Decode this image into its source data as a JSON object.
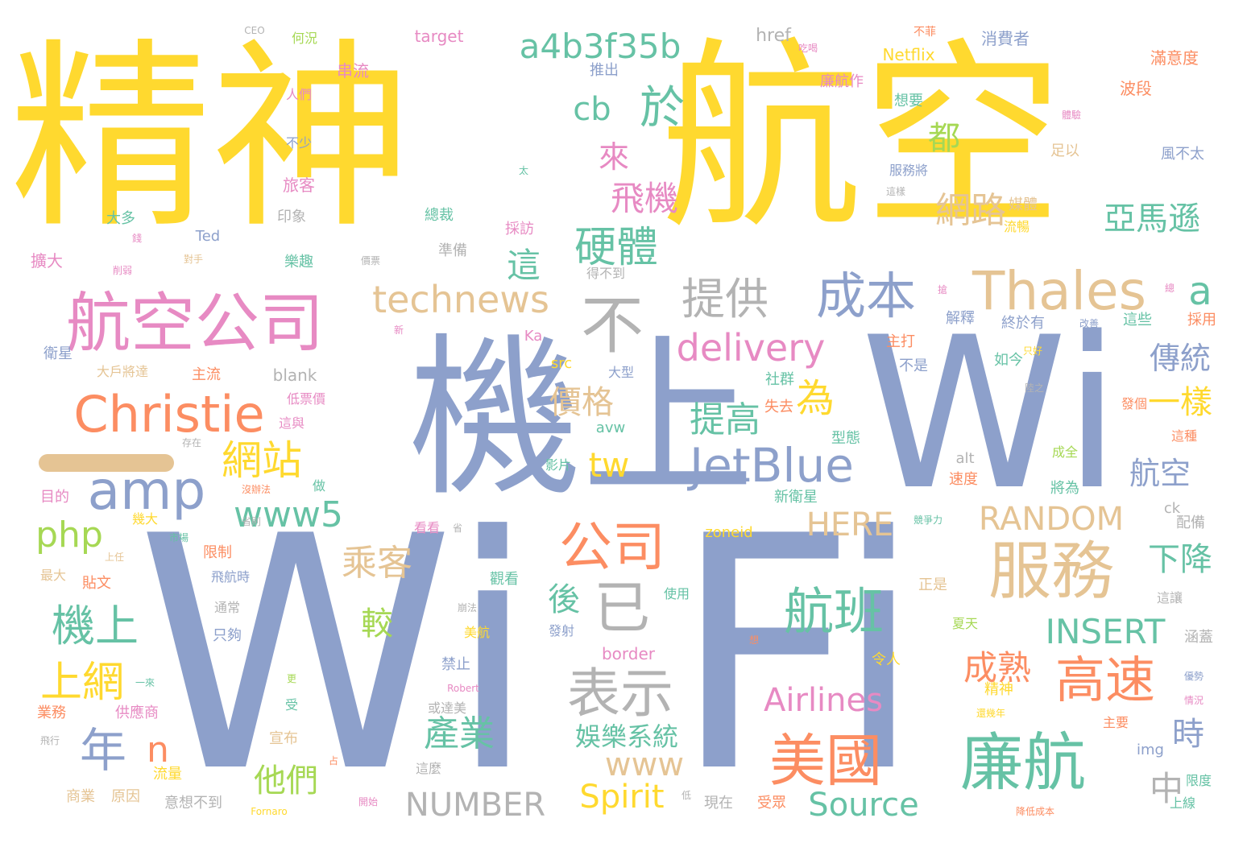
{
  "colors": {
    "yellow": "#ffd92f",
    "blue": "#8da0cb",
    "green": "#66c2a5",
    "orange": "#fc8d62",
    "pink": "#e78ac3",
    "lime": "#a6d854",
    "tan": "#e5c494",
    "gray": "#b3b3b3"
  },
  "words": [
    {
      "text": "精神",
      "c": "yellow"
    },
    {
      "text": "航空",
      "c": "yellow"
    },
    {
      "text": "機上",
      "c": "blue"
    },
    {
      "text": "Wi",
      "c": "blue"
    },
    {
      "text": "Wi",
      "c": "blue"
    },
    {
      "text": "Fi",
      "c": "blue"
    },
    {
      "text": "航空公司",
      "c": "pink"
    },
    {
      "text": "Christie",
      "c": "orange"
    },
    {
      "text": "amp",
      "c": "blue"
    },
    {
      "text": "php",
      "c": "lime"
    },
    {
      "text": "a4b3f35b",
      "c": "green"
    },
    {
      "text": "於",
      "c": "green"
    },
    {
      "text": "cb",
      "c": "green"
    },
    {
      "text": "來",
      "c": "pink"
    },
    {
      "text": "飛機",
      "c": "pink"
    },
    {
      "text": "都",
      "c": "lime"
    },
    {
      "text": "硬體",
      "c": "green"
    },
    {
      "text": "這",
      "c": "green"
    },
    {
      "text": "網路",
      "c": "tan"
    },
    {
      "text": "亞馬遜",
      "c": "green"
    },
    {
      "text": "Thales",
      "c": "tan"
    },
    {
      "text": "a",
      "c": "green"
    },
    {
      "text": "technews",
      "c": "tan"
    },
    {
      "text": "不",
      "c": "gray"
    },
    {
      "text": "提供",
      "c": "gray"
    },
    {
      "text": "成本",
      "c": "blue"
    },
    {
      "text": "delivery",
      "c": "pink"
    },
    {
      "text": "為",
      "c": "yellow"
    },
    {
      "text": "價格",
      "c": "tan"
    },
    {
      "text": "提高",
      "c": "green"
    },
    {
      "text": "JetBlue",
      "c": "blue"
    },
    {
      "text": "tw",
      "c": "yellow"
    },
    {
      "text": "網站",
      "c": "yellow"
    },
    {
      "text": "www5",
      "c": "green"
    },
    {
      "text": "公司",
      "c": "orange"
    },
    {
      "text": "已",
      "c": "gray"
    },
    {
      "text": "服務",
      "c": "tan"
    },
    {
      "text": "RANDOM",
      "c": "tan"
    },
    {
      "text": "HERE",
      "c": "tan"
    },
    {
      "text": "傳統",
      "c": "blue"
    },
    {
      "text": "一樣",
      "c": "yellow"
    },
    {
      "text": "航空",
      "c": "blue"
    },
    {
      "text": "下降",
      "c": "green"
    },
    {
      "text": "乘客",
      "c": "tan"
    },
    {
      "text": "後",
      "c": "green"
    },
    {
      "text": "較",
      "c": "lime"
    },
    {
      "text": "機上",
      "c": "green"
    },
    {
      "text": "上網",
      "c": "yellow"
    },
    {
      "text": "年",
      "c": "blue"
    },
    {
      "text": "n",
      "c": "orange"
    },
    {
      "text": "航班",
      "c": "green"
    },
    {
      "text": "表示",
      "c": "gray"
    },
    {
      "text": "INSERT",
      "c": "green"
    },
    {
      "text": "成熟",
      "c": "orange"
    },
    {
      "text": "高速",
      "c": "orange"
    },
    {
      "text": "Airlines",
      "c": "pink"
    },
    {
      "text": "美國",
      "c": "orange"
    },
    {
      "text": "廉航",
      "c": "green"
    },
    {
      "text": "時",
      "c": "blue"
    },
    {
      "text": "中",
      "c": "gray"
    },
    {
      "text": "產業",
      "c": "green"
    },
    {
      "text": "www",
      "c": "tan"
    },
    {
      "text": "娛樂系統",
      "c": "green"
    },
    {
      "text": "他們",
      "c": "lime"
    },
    {
      "text": "Spirit",
      "c": "yellow"
    },
    {
      "text": "NUMBER",
      "c": "gray"
    },
    {
      "text": "Source",
      "c": "green"
    },
    {
      "text": "CEO",
      "c": "gray"
    },
    {
      "text": "何況",
      "c": "lime"
    },
    {
      "text": "target",
      "c": "pink"
    },
    {
      "text": "href",
      "c": "gray"
    },
    {
      "text": "Netflix",
      "c": "yellow"
    },
    {
      "text": "不菲",
      "c": "orange"
    },
    {
      "text": "吃喝",
      "c": "pink"
    },
    {
      "text": "消費者",
      "c": "blue"
    },
    {
      "text": "滿意度",
      "c": "orange"
    },
    {
      "text": "串流",
      "c": "pink"
    },
    {
      "text": "推出",
      "c": "blue"
    },
    {
      "text": "人們",
      "c": "pink"
    },
    {
      "text": "廉航作",
      "c": "pink"
    },
    {
      "text": "想要",
      "c": "green"
    },
    {
      "text": "波段",
      "c": "orange"
    },
    {
      "text": "體驗",
      "c": "pink"
    },
    {
      "text": "不少",
      "c": "blue"
    },
    {
      "text": "足以",
      "c": "tan"
    },
    {
      "text": "服務將",
      "c": "blue"
    },
    {
      "text": "風不太",
      "c": "blue"
    },
    {
      "text": "太",
      "c": "green"
    },
    {
      "text": "旅客",
      "c": "pink"
    },
    {
      "text": "這樣",
      "c": "gray"
    },
    {
      "text": "媒體",
      "c": "tan"
    },
    {
      "text": "大多",
      "c": "green"
    },
    {
      "text": "錢",
      "c": "pink"
    },
    {
      "text": "印象",
      "c": "gray"
    },
    {
      "text": "總裁",
      "c": "green"
    },
    {
      "text": "採訪",
      "c": "pink"
    },
    {
      "text": "流暢",
      "c": "yellow"
    },
    {
      "text": "Ted",
      "c": "blue"
    },
    {
      "text": "擴大",
      "c": "pink"
    },
    {
      "text": "削弱",
      "c": "pink"
    },
    {
      "text": "對手",
      "c": "tan"
    },
    {
      "text": "樂趣",
      "c": "green"
    },
    {
      "text": "準備",
      "c": "gray"
    },
    {
      "text": "價票",
      "c": "gray"
    },
    {
      "text": "得不到",
      "c": "gray"
    },
    {
      "text": "搶",
      "c": "pink"
    },
    {
      "text": "總",
      "c": "pink"
    },
    {
      "text": "解釋",
      "c": "blue"
    },
    {
      "text": "終於有",
      "c": "blue"
    },
    {
      "text": "改善",
      "c": "blue"
    },
    {
      "text": "這些",
      "c": "green"
    },
    {
      "text": "採用",
      "c": "orange"
    },
    {
      "text": "新",
      "c": "pink"
    },
    {
      "text": "Ka",
      "c": "pink"
    },
    {
      "text": "主打",
      "c": "orange"
    },
    {
      "text": "不是",
      "c": "blue"
    },
    {
      "text": "如今",
      "c": "green"
    },
    {
      "text": "衛星",
      "c": "blue"
    },
    {
      "text": "大戶將達",
      "c": "tan"
    },
    {
      "text": "主流",
      "c": "orange"
    },
    {
      "text": "blank",
      "c": "gray"
    },
    {
      "text": "src",
      "c": "yellow"
    },
    {
      "text": "大型",
      "c": "blue"
    },
    {
      "text": "只好",
      "c": "yellow"
    },
    {
      "text": "社群",
      "c": "green"
    },
    {
      "text": "陸之",
      "c": "gray"
    },
    {
      "text": "低票價",
      "c": "pink"
    },
    {
      "text": "失去",
      "c": "orange"
    },
    {
      "text": "發個",
      "c": "orange"
    },
    {
      "text": "這種",
      "c": "orange"
    },
    {
      "text": "這與",
      "c": "pink"
    },
    {
      "text": "avw",
      "c": "green"
    },
    {
      "text": "存在",
      "c": "gray"
    },
    {
      "text": "型態",
      "c": "green"
    },
    {
      "text": "影片",
      "c": "green"
    },
    {
      "text": "alt",
      "c": "gray"
    },
    {
      "text": "成全",
      "c": "lime"
    },
    {
      "text": "速度",
      "c": "orange"
    },
    {
      "text": "目的",
      "c": "pink"
    },
    {
      "text": "沒辦法",
      "c": "orange"
    },
    {
      "text": "做",
      "c": "green"
    },
    {
      "text": "新衛星",
      "c": "green"
    },
    {
      "text": "將為",
      "c": "green"
    },
    {
      "text": "幾大",
      "c": "yellow"
    },
    {
      "text": "ck",
      "c": "gray"
    },
    {
      "text": "市場",
      "c": "green"
    },
    {
      "text": "省則",
      "c": "gray"
    },
    {
      "text": "看看",
      "c": "pink"
    },
    {
      "text": "省",
      "c": "gray"
    },
    {
      "text": "競爭力",
      "c": "green"
    },
    {
      "text": "zoneid",
      "c": "yellow"
    },
    {
      "text": "配備",
      "c": "gray"
    },
    {
      "text": "上任",
      "c": "tan"
    },
    {
      "text": "限制",
      "c": "orange"
    },
    {
      "text": "最大",
      "c": "tan"
    },
    {
      "text": "飛航時",
      "c": "blue"
    },
    {
      "text": "貼文",
      "c": "orange"
    },
    {
      "text": "觀看",
      "c": "green"
    },
    {
      "text": "使用",
      "c": "green"
    },
    {
      "text": "正是",
      "c": "tan"
    },
    {
      "text": "通常",
      "c": "gray"
    },
    {
      "text": "崩法",
      "c": "gray"
    },
    {
      "text": "這讓",
      "c": "gray"
    },
    {
      "text": "只夠",
      "c": "blue"
    },
    {
      "text": "發射",
      "c": "blue"
    },
    {
      "text": "美航",
      "c": "yellow"
    },
    {
      "text": "夏天",
      "c": "lime"
    },
    {
      "text": "涵蓋",
      "c": "gray"
    },
    {
      "text": "想",
      "c": "orange"
    },
    {
      "text": "border",
      "c": "pink"
    },
    {
      "text": "令人",
      "c": "yellow"
    },
    {
      "text": "優勢",
      "c": "blue"
    },
    {
      "text": "一來",
      "c": "green"
    },
    {
      "text": "禁止",
      "c": "blue"
    },
    {
      "text": "更",
      "c": "lime"
    },
    {
      "text": "Robert",
      "c": "pink"
    },
    {
      "text": "精神",
      "c": "yellow"
    },
    {
      "text": "情況",
      "c": "pink"
    },
    {
      "text": "業務",
      "c": "orange"
    },
    {
      "text": "供應商",
      "c": "pink"
    },
    {
      "text": "受",
      "c": "green"
    },
    {
      "text": "或達美",
      "c": "gray"
    },
    {
      "text": "還幾年",
      "c": "yellow"
    },
    {
      "text": "主要",
      "c": "orange"
    },
    {
      "text": "飛行",
      "c": "gray"
    },
    {
      "text": "宣布",
      "c": "tan"
    },
    {
      "text": "img",
      "c": "blue"
    },
    {
      "text": "占",
      "c": "orange"
    },
    {
      "text": "這麼",
      "c": "gray"
    },
    {
      "text": "流量",
      "c": "yellow"
    },
    {
      "text": "限度",
      "c": "green"
    },
    {
      "text": "商業",
      "c": "tan"
    },
    {
      "text": "原因",
      "c": "tan"
    },
    {
      "text": "意想不到",
      "c": "gray"
    },
    {
      "text": "開始",
      "c": "pink"
    },
    {
      "text": "Fornaro",
      "c": "yellow"
    },
    {
      "text": "低",
      "c": "gray"
    },
    {
      "text": "現在",
      "c": "gray"
    },
    {
      "text": "受眾",
      "c": "orange"
    },
    {
      "text": "上線",
      "c": "green"
    },
    {
      "text": "降低成本",
      "c": "orange"
    }
  ]
}
